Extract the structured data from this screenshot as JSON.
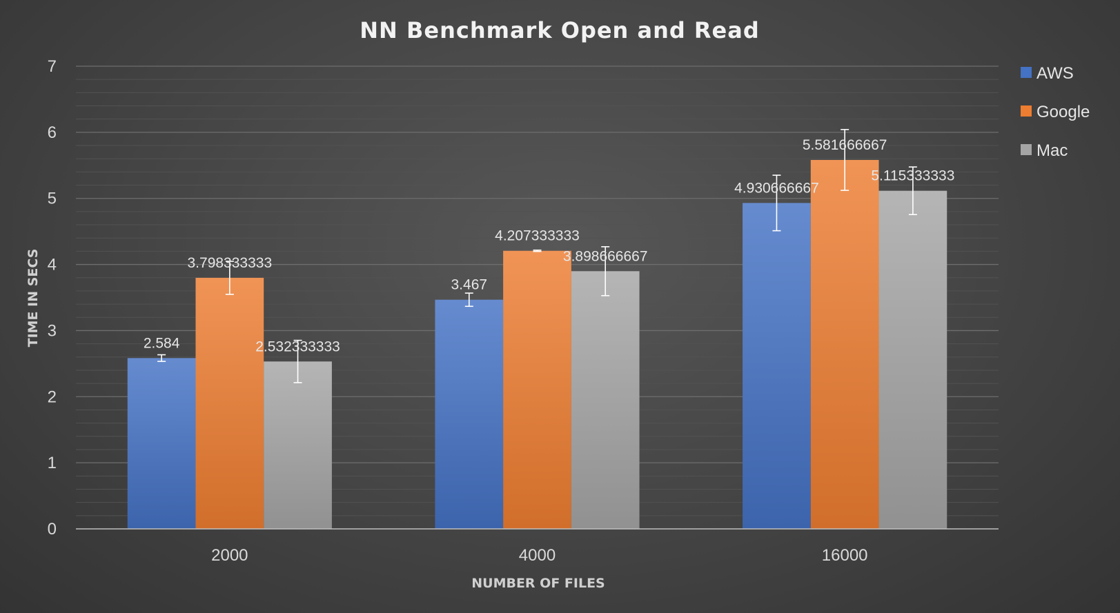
{
  "chart_data": {
    "type": "bar",
    "title": "NN Benchmark Open and Read",
    "xlabel": "NUMBER OF FILES",
    "ylabel": "TIME IN SECS",
    "categories": [
      "2000",
      "4000",
      "16000"
    ],
    "ylim": [
      0,
      7
    ],
    "yticks": [
      0,
      1,
      2,
      3,
      4,
      5,
      6,
      7
    ],
    "grid": true,
    "legend_position": "right",
    "series": [
      {
        "name": "AWS",
        "color": "#4472c4",
        "values": [
          2.584,
          3.467,
          4.930666667
        ],
        "labels": [
          "2.584",
          "3.467",
          "4.930666667"
        ],
        "error": [
          0.05,
          0.1,
          0.42
        ]
      },
      {
        "name": "Google",
        "color": "#ed7d31",
        "values": [
          3.798333333,
          4.207333333,
          5.581666667
        ],
        "labels": [
          "3.798333333",
          "4.207333333",
          "5.581666667"
        ],
        "error": [
          0.25,
          0.01,
          0.46
        ]
      },
      {
        "name": "Mac",
        "color": "#a5a5a5",
        "values": [
          2.532333333,
          3.898666667,
          5.115333333
        ],
        "labels": [
          "2.532333333",
          "3.898666667",
          "5.115333333"
        ],
        "error": [
          0.32,
          0.37,
          0.36
        ]
      }
    ]
  }
}
